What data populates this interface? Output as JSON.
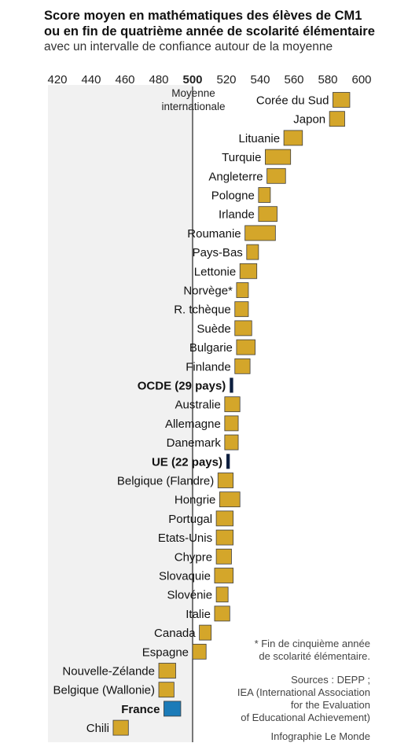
{
  "title": {
    "line1": "Score moyen en mathématiques des élèves de CM1",
    "line2": "ou en fin de quatrième année de scolarité élémentaire",
    "subtitle": "avec un intervalle de confiance autour de la moyenne"
  },
  "notes": {
    "footnote_line1": "* Fin de cinquième année",
    "footnote_line2": "de scolarité élémentaire.",
    "sources_line1": "Sources : DEPP ;",
    "sources_line2": "IEA (International Association",
    "sources_line3": "for the Evaluation",
    "sources_line4": "of Educational Achievement)",
    "credit": "Infographie Le Monde"
  },
  "chart_data": {
    "type": "bar",
    "orientation": "horizontal-range",
    "xlim": [
      420,
      600
    ],
    "xticks": [
      420,
      440,
      460,
      480,
      500,
      520,
      540,
      560,
      580,
      600
    ],
    "reference": {
      "value": 500,
      "label_line1": "Moyenne",
      "label_line2": "internationale"
    },
    "colors": {
      "country": "#d4a62a",
      "aggregate": "#0d1f3f",
      "france": "#1b7bb8",
      "stroke": "#3d3d3d",
      "refline": "#333333"
    },
    "series": [
      {
        "name": "Corée du Sud",
        "low": 583,
        "high": 593,
        "kind": "country"
      },
      {
        "name": "Japon",
        "low": 581,
        "high": 590,
        "kind": "country"
      },
      {
        "name": "Lituanie",
        "low": 554,
        "high": 565,
        "kind": "country"
      },
      {
        "name": "Turquie",
        "low": 543,
        "high": 558,
        "kind": "country"
      },
      {
        "name": "Angleterre",
        "low": 544,
        "high": 555,
        "kind": "country"
      },
      {
        "name": "Pologne",
        "low": 539,
        "high": 546,
        "kind": "country"
      },
      {
        "name": "Irlande",
        "low": 539,
        "high": 550,
        "kind": "country"
      },
      {
        "name": "Roumanie",
        "low": 531,
        "high": 549,
        "kind": "country"
      },
      {
        "name": "Pays-Bas",
        "low": 532,
        "high": 539,
        "kind": "country"
      },
      {
        "name": "Lettonie",
        "low": 528,
        "high": 538,
        "kind": "country"
      },
      {
        "name": "Norvège*",
        "low": 526,
        "high": 533,
        "kind": "country"
      },
      {
        "name": "R. tchèque",
        "low": 525,
        "high": 533,
        "kind": "country"
      },
      {
        "name": "Suède",
        "low": 525,
        "high": 535,
        "kind": "country"
      },
      {
        "name": "Bulgarie",
        "low": 526,
        "high": 537,
        "kind": "country"
      },
      {
        "name": "Finlande",
        "low": 525,
        "high": 534,
        "kind": "country"
      },
      {
        "name": "OCDE (29 pays)",
        "low": 522,
        "high": 524,
        "kind": "aggregate"
      },
      {
        "name": "Australie",
        "low": 519,
        "high": 528,
        "kind": "country"
      },
      {
        "name": "Allemagne",
        "low": 519,
        "high": 527,
        "kind": "country"
      },
      {
        "name": "Danemark",
        "low": 519,
        "high": 527,
        "kind": "country"
      },
      {
        "name": "UE (22 pays)",
        "low": 520,
        "high": 522,
        "kind": "aggregate"
      },
      {
        "name": "Belgique (Flandre)",
        "low": 515,
        "high": 524,
        "kind": "country"
      },
      {
        "name": "Hongrie",
        "low": 516,
        "high": 528,
        "kind": "country"
      },
      {
        "name": "Portugal",
        "low": 514,
        "high": 524,
        "kind": "country"
      },
      {
        "name": "Etats-Unis",
        "low": 514,
        "high": 524,
        "kind": "country"
      },
      {
        "name": "Chypre",
        "low": 514,
        "high": 523,
        "kind": "country"
      },
      {
        "name": "Slovaquie",
        "low": 513,
        "high": 524,
        "kind": "country"
      },
      {
        "name": "Slovénie",
        "low": 514,
        "high": 521,
        "kind": "country"
      },
      {
        "name": "Italie",
        "low": 513,
        "high": 522,
        "kind": "country"
      },
      {
        "name": "Canada",
        "low": 504,
        "high": 511,
        "kind": "country"
      },
      {
        "name": "Espagne",
        "low": 500,
        "high": 508,
        "kind": "country"
      },
      {
        "name": "Nouvelle-Zélande",
        "low": 480,
        "high": 490,
        "kind": "country"
      },
      {
        "name": "Belgique (Wallonie)",
        "low": 480,
        "high": 489,
        "kind": "country"
      },
      {
        "name": "France",
        "low": 483,
        "high": 493,
        "kind": "france"
      },
      {
        "name": "Chili",
        "low": 453,
        "high": 462,
        "kind": "country"
      }
    ]
  }
}
